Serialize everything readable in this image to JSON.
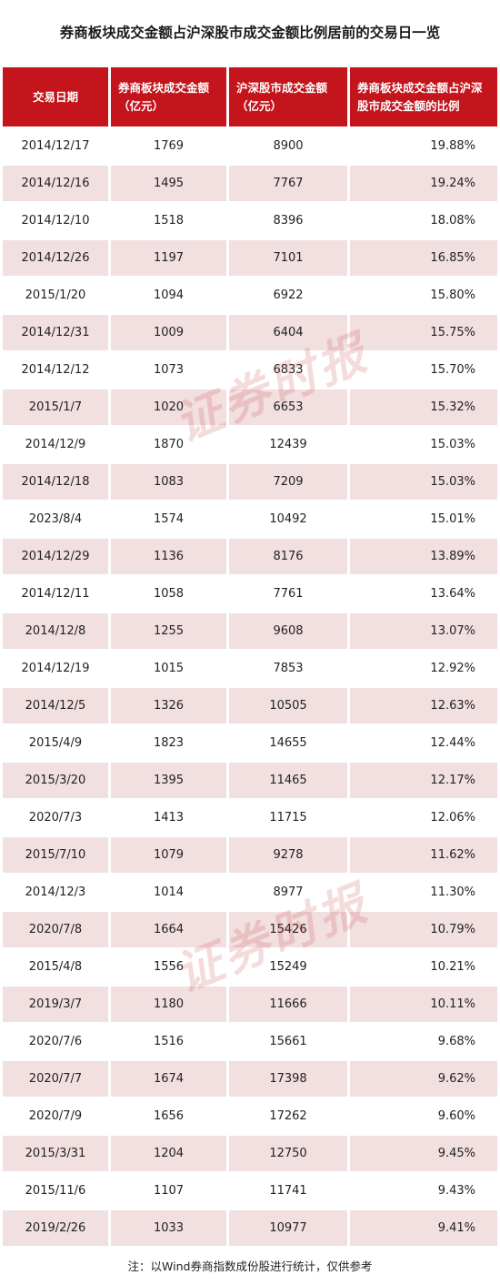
{
  "title": "券商板块成交金额占沪深股市成交金额比例居前的交易日一览",
  "headers": [
    "交易日期",
    "券商板块成交金额\n（亿元）",
    "沪深股市成交金额\n（亿元）",
    "券商板块成交金额占沪深\n股市成交金额的比例"
  ],
  "rows": [
    [
      "2014/12/17",
      "1769",
      "8900",
      "19.88%"
    ],
    [
      "2014/12/16",
      "1495",
      "7767",
      "19.24%"
    ],
    [
      "2014/12/10",
      "1518",
      "8396",
      "18.08%"
    ],
    [
      "2014/12/26",
      "1197",
      "7101",
      "16.85%"
    ],
    [
      "2015/1/20",
      "1094",
      "6922",
      "15.80%"
    ],
    [
      "2014/12/31",
      "1009",
      "6404",
      "15.75%"
    ],
    [
      "2014/12/12",
      "1073",
      "6833",
      "15.70%"
    ],
    [
      "2015/1/7",
      "1020",
      "6653",
      "15.32%"
    ],
    [
      "2014/12/9",
      "1870",
      "12439",
      "15.03%"
    ],
    [
      "2014/12/18",
      "1083",
      "7209",
      "15.03%"
    ],
    [
      "2023/8/4",
      "1574",
      "10492",
      "15.01%"
    ],
    [
      "2014/12/29",
      "1136",
      "8176",
      "13.89%"
    ],
    [
      "2014/12/11",
      "1058",
      "7761",
      "13.64%"
    ],
    [
      "2014/12/8",
      "1255",
      "9608",
      "13.07%"
    ],
    [
      "2014/12/19",
      "1015",
      "7853",
      "12.92%"
    ],
    [
      "2014/12/5",
      "1326",
      "10505",
      "12.63%"
    ],
    [
      "2015/4/9",
      "1823",
      "14655",
      "12.44%"
    ],
    [
      "2015/3/20",
      "1395",
      "11465",
      "12.17%"
    ],
    [
      "2020/7/3",
      "1413",
      "11715",
      "12.06%"
    ],
    [
      "2015/7/10",
      "1079",
      "9278",
      "11.62%"
    ],
    [
      "2014/12/3",
      "1014",
      "8977",
      "11.30%"
    ],
    [
      "2020/7/8",
      "1664",
      "15426",
      "10.79%"
    ],
    [
      "2015/4/8",
      "1556",
      "15249",
      "10.21%"
    ],
    [
      "2019/3/7",
      "1180",
      "11666",
      "10.11%"
    ],
    [
      "2020/7/6",
      "1516",
      "15661",
      "9.68%"
    ],
    [
      "2020/7/7",
      "1674",
      "17398",
      "9.62%"
    ],
    [
      "2020/7/9",
      "1656",
      "17262",
      "9.60%"
    ],
    [
      "2015/3/31",
      "1204",
      "12750",
      "9.45%"
    ],
    [
      "2015/11/6",
      "1107",
      "11741",
      "9.43%"
    ],
    [
      "2019/2/26",
      "1033",
      "10977",
      "9.41%"
    ]
  ],
  "watermark": "证券时报",
  "note": "注：以Wind券商指数成份股进行统计，仅供参考",
  "colors": {
    "header_bg": "#c4141c",
    "row_alt_bg": "#f2dfe0",
    "watermark": "#c83c3c"
  }
}
